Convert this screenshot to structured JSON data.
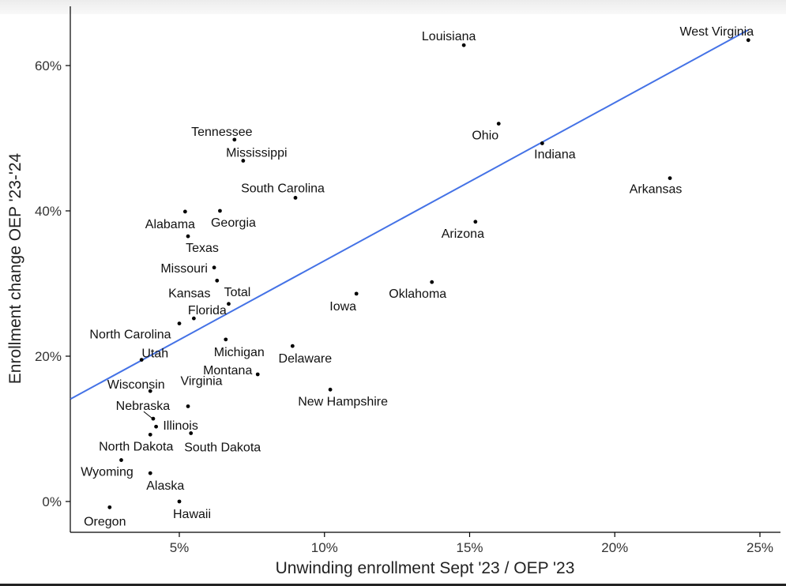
{
  "chart_data": {
    "type": "scatter",
    "title": "",
    "xlabel": "Unwinding enrollment Sept '23 / OEP '23",
    "ylabel": "Enrollment change OEP '23-'24",
    "xlim": [
      0.015,
      0.26
    ],
    "ylim": [
      -0.04,
      0.68
    ],
    "x_ticks": [
      0.05,
      0.1,
      0.15,
      0.2,
      0.25
    ],
    "x_tick_labels": [
      "5%",
      "10%",
      "15%",
      "20%",
      "25%"
    ],
    "y_ticks": [
      0.0,
      0.2,
      0.4,
      0.6
    ],
    "y_tick_labels": [
      "0%",
      "20%",
      "40%",
      "60%"
    ],
    "grid": false,
    "trend_line": {
      "x": [
        0.0125,
        0.246
      ],
      "y": [
        0.141,
        0.649
      ],
      "color": "#4472E6"
    },
    "point_color": "#000000",
    "points": [
      {
        "label": "West Virginia",
        "x": 0.246,
        "y": 0.635
      },
      {
        "label": "Louisiana",
        "x": 0.148,
        "y": 0.628
      },
      {
        "label": "Ohio",
        "x": 0.16,
        "y": 0.52
      },
      {
        "label": "Indiana",
        "x": 0.175,
        "y": 0.493
      },
      {
        "label": "Arkansas",
        "x": 0.219,
        "y": 0.445
      },
      {
        "label": "Tennessee",
        "x": 0.069,
        "y": 0.498
      },
      {
        "label": "Mississippi",
        "x": 0.072,
        "y": 0.469
      },
      {
        "label": "South Carolina",
        "x": 0.09,
        "y": 0.418
      },
      {
        "label": "Georgia",
        "x": 0.064,
        "y": 0.4
      },
      {
        "label": "Alabama",
        "x": 0.052,
        "y": 0.399
      },
      {
        "label": "Texas",
        "x": 0.053,
        "y": 0.365
      },
      {
        "label": "Arizona",
        "x": 0.152,
        "y": 0.385
      },
      {
        "label": "Missouri",
        "x": 0.062,
        "y": 0.322
      },
      {
        "label": "Kansas",
        "x": 0.063,
        "y": 0.304
      },
      {
        "label": "Total",
        "x": 0.067,
        "y": 0.272
      },
      {
        "label": "Oklahoma",
        "x": 0.137,
        "y": 0.302
      },
      {
        "label": "Iowa",
        "x": 0.111,
        "y": 0.286
      },
      {
        "label": "Florida",
        "x": 0.055,
        "y": 0.252
      },
      {
        "label": "North Carolina",
        "x": 0.05,
        "y": 0.245
      },
      {
        "label": "Michigan",
        "x": 0.066,
        "y": 0.223
      },
      {
        "label": "Delaware",
        "x": 0.089,
        "y": 0.214
      },
      {
        "label": "Utah",
        "x": 0.037,
        "y": 0.195
      },
      {
        "label": "Montana",
        "x": 0.077,
        "y": 0.175
      },
      {
        "label": "New Hampshire",
        "x": 0.102,
        "y": 0.154
      },
      {
        "label": "Wisconsin",
        "x": 0.04,
        "y": 0.152
      },
      {
        "label": "Virginia",
        "x": 0.053,
        "y": 0.131
      },
      {
        "label": "Nebraska",
        "x": 0.041,
        "y": 0.114
      },
      {
        "label": "Illinois",
        "x": 0.042,
        "y": 0.103
      },
      {
        "label": "South Dakota",
        "x": 0.054,
        "y": 0.094
      },
      {
        "label": "North Dakota",
        "x": 0.04,
        "y": 0.092
      },
      {
        "label": "Wyoming",
        "x": 0.03,
        "y": 0.057
      },
      {
        "label": "Alaska",
        "x": 0.04,
        "y": 0.039
      },
      {
        "label": "Hawaii",
        "x": 0.05,
        "y": 0.0
      },
      {
        "label": "Oregon",
        "x": 0.026,
        "y": -0.008
      }
    ]
  }
}
